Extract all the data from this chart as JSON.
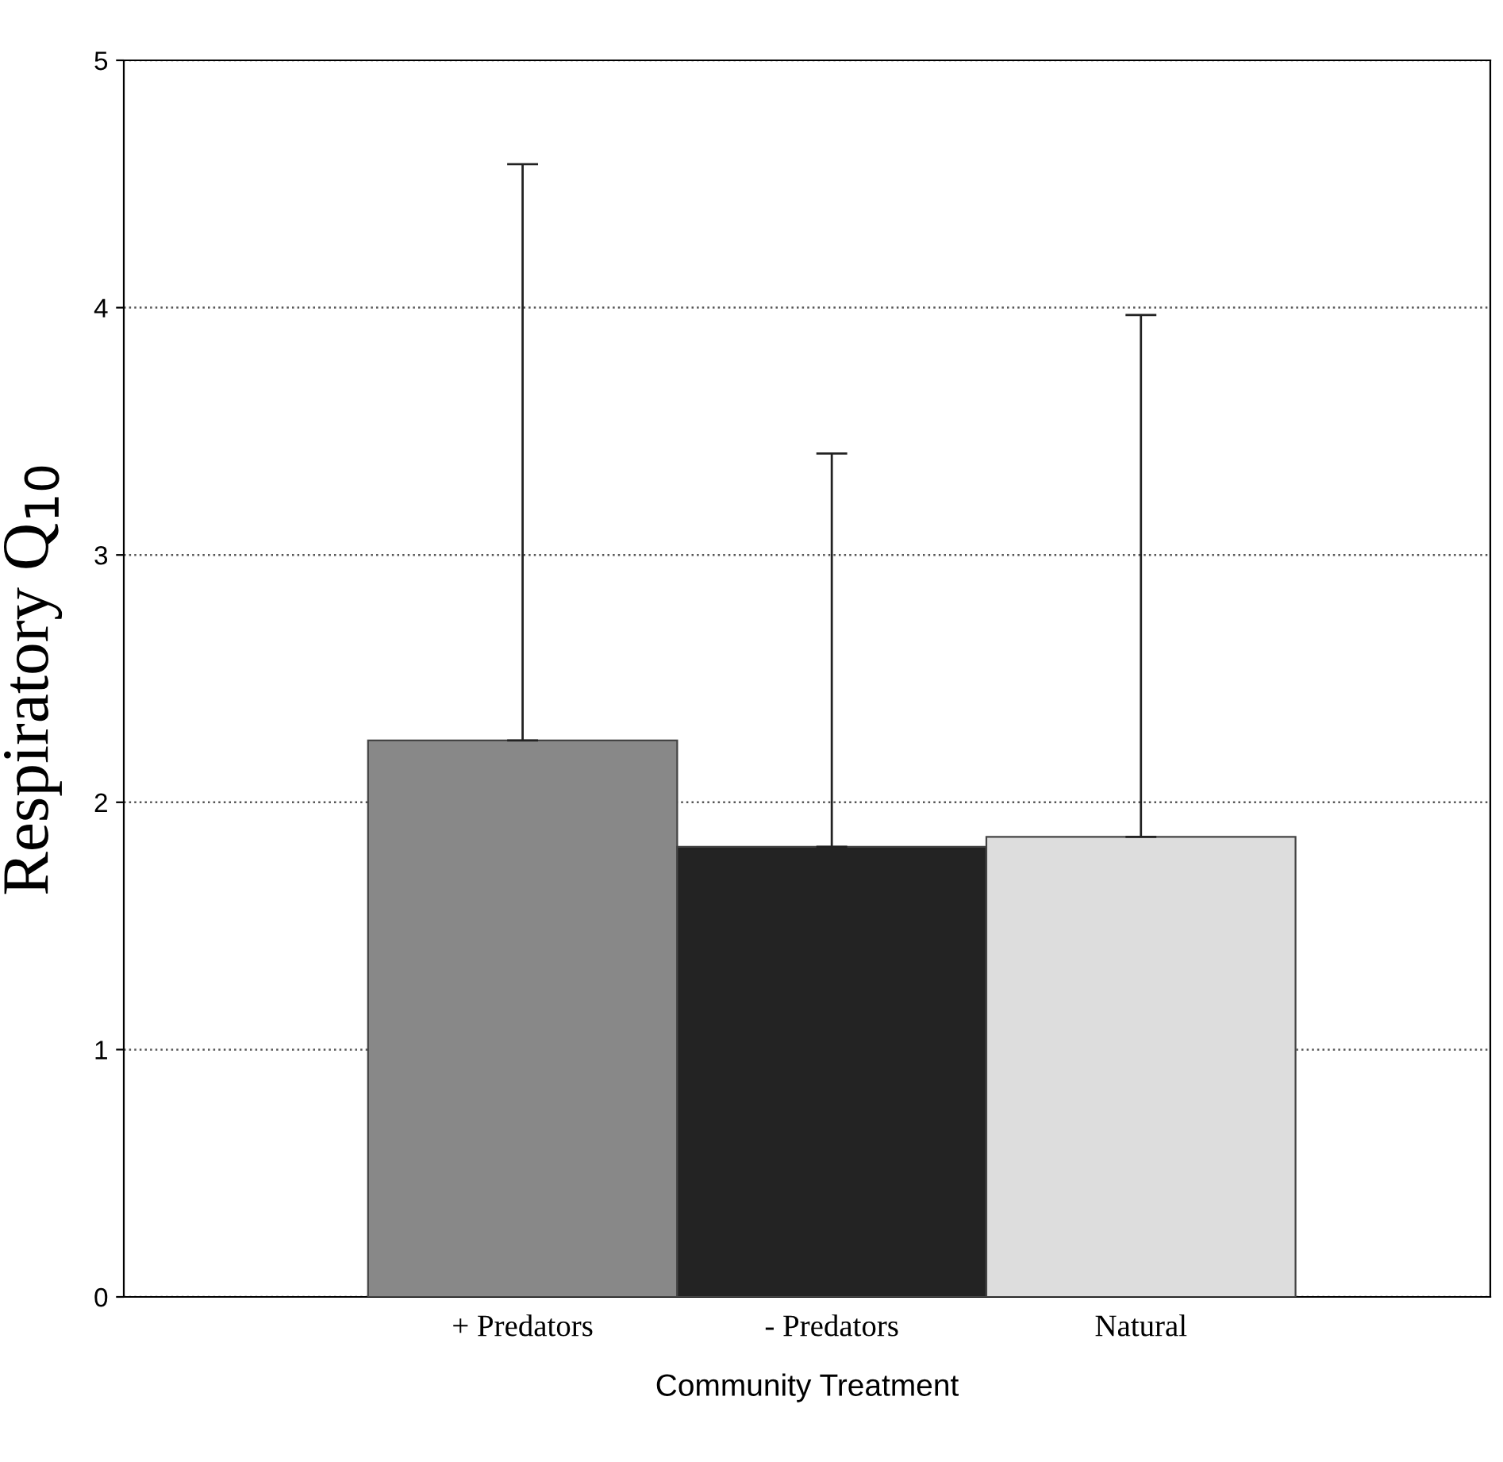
{
  "chart_data": {
    "type": "bar",
    "xlabel": "Community Treatment",
    "ylabel": "Respiratory Q$_{10}$",
    "categories": [
      "+ Predators",
      "- Predators",
      "Natural"
    ],
    "values": [
      2.25,
      1.82,
      1.86
    ],
    "colors": [
      "#888888",
      "#232323",
      "#dddddd"
    ],
    "errors": [
      [
        2.25,
        4.58
      ],
      [
        1.82,
        3.41
      ],
      [
        1.86,
        3.97
      ]
    ],
    "ylim": [
      0,
      5
    ],
    "yticks": [
      0,
      1,
      2,
      3,
      4,
      5
    ],
    "grid": "y",
    "line_style": "dotted"
  }
}
